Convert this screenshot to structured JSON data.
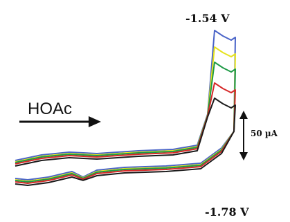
{
  "chart_data": {
    "type": "line",
    "title": "",
    "xlabel": "",
    "ylabel": "",
    "grid": false,
    "legend": "none",
    "annotations": {
      "top_potential": "-1.54 V",
      "bottom_potential": "-1.78 V",
      "arrow_label": "HOAc",
      "scale_bar_label": "50 µA"
    },
    "series": [
      {
        "color": "#4a64c8",
        "order": 1
      },
      {
        "color": "#e6e21e",
        "order": 2
      },
      {
        "color": "#1e9a46",
        "order": 3
      },
      {
        "color": "#d62828",
        "order": 4
      },
      {
        "color": "#1b1b1b",
        "order": 5
      }
    ]
  }
}
